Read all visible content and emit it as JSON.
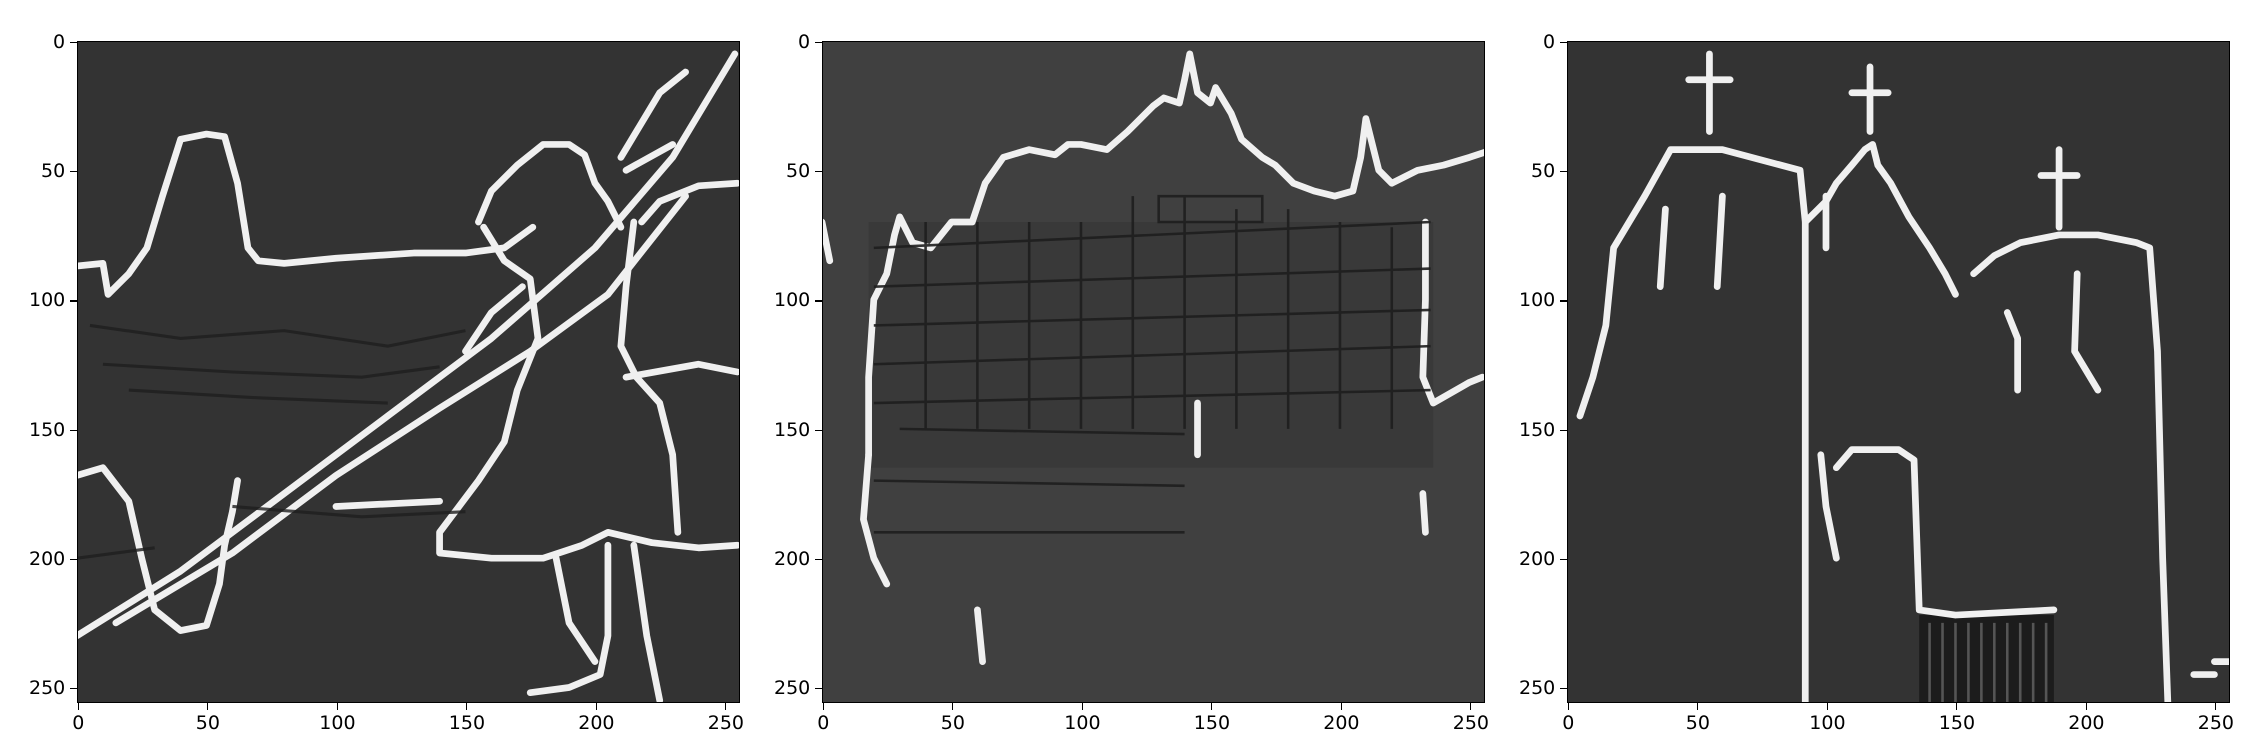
{
  "figure": {
    "panels": [
      {
        "id": "panel-1",
        "subject": "edge map: figure with raised spear on a hillside"
      },
      {
        "id": "panel-2",
        "subject": "edge map: large building facade"
      },
      {
        "id": "panel-3",
        "subject": "edge map: church with three crosses"
      }
    ],
    "axes": {
      "xticks": [
        "0",
        "50",
        "100",
        "150",
        "200",
        "250"
      ],
      "yticks": [
        "0",
        "50",
        "100",
        "150",
        "200",
        "250"
      ],
      "data_extent": [
        0,
        255
      ]
    },
    "colors": {
      "background": "#323232",
      "edge": "#f2f2f2",
      "canvas": "#ffffff"
    }
  }
}
